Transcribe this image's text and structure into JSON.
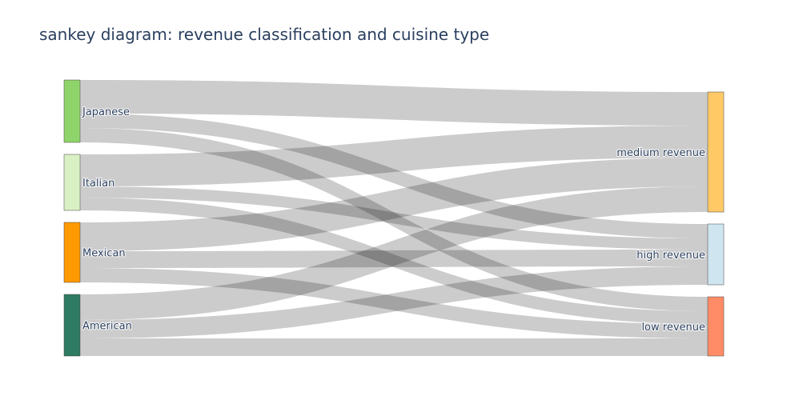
{
  "chart_data": {
    "type": "sankey",
    "title": "sankey diagram: revenue classification and cuisine type",
    "sources": [
      {
        "name": "Japanese",
        "color": "#8fd46b"
      },
      {
        "name": "Italian",
        "color": "#d9efc4"
      },
      {
        "name": "Mexican",
        "color": "#ff9900"
      },
      {
        "name": "American",
        "color": "#2e7a62"
      }
    ],
    "targets": [
      {
        "name": "medium revenue",
        "color": "#ffc966"
      },
      {
        "name": "high revenue",
        "color": "#cfe6f0"
      },
      {
        "name": "low revenue",
        "color": "#ff8c66"
      }
    ],
    "flows": [
      {
        "source": "Japanese",
        "target": "medium revenue",
        "value": 42
      },
      {
        "source": "Japanese",
        "target": "high revenue",
        "value": 18
      },
      {
        "source": "Japanese",
        "target": "low revenue",
        "value": 18
      },
      {
        "source": "Italian",
        "target": "medium revenue",
        "value": 40
      },
      {
        "source": "Italian",
        "target": "high revenue",
        "value": 14
      },
      {
        "source": "Italian",
        "target": "low revenue",
        "value": 16
      },
      {
        "source": "Mexican",
        "target": "medium revenue",
        "value": 36
      },
      {
        "source": "Mexican",
        "target": "high revenue",
        "value": 21
      },
      {
        "source": "Mexican",
        "target": "low revenue",
        "value": 18
      },
      {
        "source": "American",
        "target": "medium revenue",
        "value": 32
      },
      {
        "source": "American",
        "target": "high revenue",
        "value": 23
      },
      {
        "source": "American",
        "target": "low revenue",
        "value": 22
      }
    ]
  }
}
